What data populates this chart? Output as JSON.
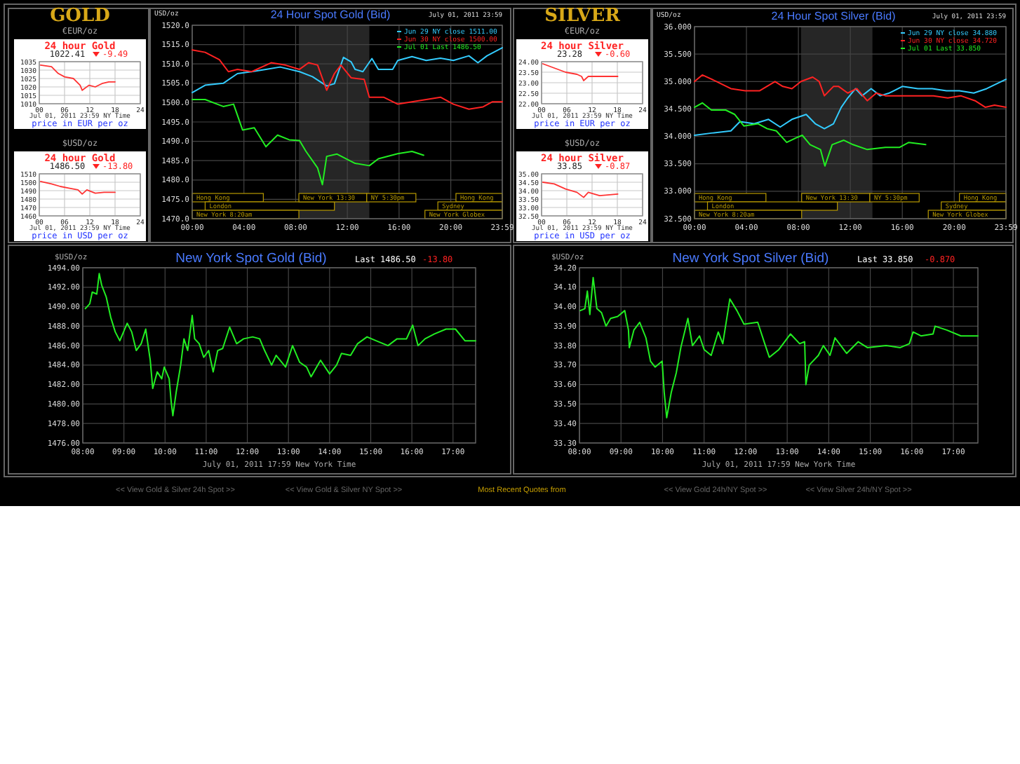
{
  "chart_data": [
    {
      "type": "line",
      "title": "GOLD",
      "ylabel": "€EUR/oz",
      "subtitle": "24 hour Gold",
      "annotations": [
        "1022.41",
        "-9.49",
        "Jul 01, 2011 23:59 NY Time",
        "price in EUR per oz"
      ],
      "xlim": [
        0,
        24
      ],
      "xticks": [
        {
          "value": 0,
          "label": "00"
        },
        {
          "value": 6,
          "label": "06"
        },
        12,
        18,
        24
      ],
      "ylim": [
        1010,
        1035
      ],
      "yticks": [
        1010,
        1015,
        1020,
        1025,
        1030,
        1035
      ],
      "grid": true,
      "series": [
        {
          "color": "#ff3333",
          "x": [
            0.3,
            2.9,
            4.5,
            6.0,
            8.1,
            9.7,
            10.2,
            11.8,
            13.3,
            14.9,
            16.5,
            18.0
          ],
          "values": [
            1033,
            1032,
            1028,
            1026,
            1025,
            1021,
            1018,
            1021,
            1020,
            1022,
            1023,
            1023
          ]
        }
      ]
    },
    {
      "type": "line",
      "ylabel": "$USD/oz",
      "subtitle": "24 hour Gold",
      "annotations": [
        "1486.50",
        "-13.80",
        "Jul 01, 2011 23:59 NY Time",
        "price in USD per oz"
      ],
      "xlim": [
        0,
        24
      ],
      "xticks": [
        {
          "value": 0,
          "label": "00"
        },
        {
          "value": 6,
          "label": "06"
        },
        12,
        18,
        24
      ],
      "ylim": [
        1460,
        1510
      ],
      "yticks": [
        1460,
        1470,
        1480,
        1490,
        1500,
        1510
      ],
      "grid": true,
      "series": [
        {
          "color": "#ff3333",
          "x": [
            0.3,
            2.9,
            5,
            7,
            9.2,
            10.2,
            11.3,
            13.3,
            15.4,
            18
          ],
          "values": [
            1501,
            1498,
            1495,
            1493,
            1491,
            1486,
            1491,
            1487,
            1488,
            1488
          ]
        }
      ]
    },
    {
      "type": "line",
      "title": "24 Hour Spot Gold (Bid)",
      "subtitle": "July 01, 2011 23:59",
      "ylabel": "USD/oz",
      "legend": "top right",
      "grid": true,
      "xlim": [
        0,
        23.983
      ],
      "xticks": [
        {
          "value": 0,
          "label": "00:00"
        },
        {
          "value": 4,
          "label": "04:00"
        },
        {
          "value": 8,
          "label": "08:00"
        },
        {
          "value": 12,
          "label": "12:00"
        },
        {
          "value": 16,
          "label": "16:00"
        },
        {
          "value": 20,
          "label": "20:00"
        },
        {
          "value": 23.983,
          "label": "23:59"
        }
      ],
      "ylim": [
        1470,
        1520
      ],
      "yticks": [
        {
          "value": 1470,
          "label": "1470.0"
        },
        {
          "value": 1475,
          "label": "1475.0"
        },
        {
          "value": 1480,
          "label": "1480.0"
        },
        {
          "value": 1485,
          "label": "1485.0"
        },
        {
          "value": 1490,
          "label": "1490.0"
        },
        {
          "value": 1495,
          "label": "1495.0"
        },
        {
          "value": 1500,
          "label": "1500.0"
        },
        {
          "value": 1505,
          "label": "1505.0"
        },
        {
          "value": 1510,
          "label": "1510.0"
        },
        {
          "value": 1515,
          "label": "1515.0"
        },
        {
          "value": 1520,
          "label": "1520.0"
        }
      ],
      "bands": [
        {
          "axis": "x",
          "from": 8.25,
          "to": 13.7,
          "color": "#262626"
        },
        {
          "axis": "x",
          "from": 0,
          "to": 5.5,
          "label": "Hong Kong",
          "color": "#b89a00"
        },
        {
          "axis": "x",
          "from": 1,
          "to": 11,
          "label": "London",
          "color": "#b89a00"
        },
        {
          "axis": "x",
          "from": 0,
          "to": 8.25,
          "label": "New York 8:20am",
          "color": "#b89a00"
        },
        {
          "axis": "x",
          "from": 8.25,
          "to": 13.5,
          "label": "New York 13:30",
          "color": "#b89a00"
        },
        {
          "axis": "x",
          "from": 13.5,
          "to": 17.3,
          "label": "NY 5:30pm",
          "color": "#b89a00"
        },
        {
          "axis": "x",
          "from": 20.4,
          "to": 23.983,
          "label": "Hong Kong",
          "color": "#b89a00"
        },
        {
          "axis": "x",
          "from": 19,
          "to": 23.983,
          "label": "Sydney",
          "color": "#b89a00"
        },
        {
          "axis": "x",
          "from": 18,
          "to": 23.983,
          "label": "New York Globex",
          "color": "#b89a00"
        }
      ],
      "series": [
        {
          "name": "Jun 29 NY close 1511.00",
          "color": "#33ccff",
          "x": [
            0,
            1,
            2.4,
            3.5,
            4.6,
            5.7,
            6.8,
            8.3,
            9.3,
            10.4,
            11,
            11.7,
            12.3,
            12.6,
            13.2,
            13.9,
            14.4,
            15.5,
            15.9,
            17,
            18.1,
            19.2,
            20.2,
            21.4,
            22.1,
            22.8,
            23.983
          ],
          "values": [
            1502.6,
            1504.5,
            1505,
            1507.5,
            1508,
            1508.6,
            1509.2,
            1508,
            1506.7,
            1504.3,
            1504.9,
            1511.7,
            1510.5,
            1508.6,
            1508,
            1511.4,
            1508.6,
            1508.6,
            1510.9,
            1511.9,
            1510.9,
            1511.5,
            1510.9,
            1512.1,
            1510.3,
            1512.1,
            1514.2
          ]
        },
        {
          "name": "Jun 30 NY close 1500.00",
          "color": "#ff2222",
          "x": [
            0,
            1,
            2.1,
            2.8,
            3.5,
            4.6,
            6.1,
            7.2,
            8.3,
            9,
            9.7,
            10.4,
            11,
            11.5,
            12.3,
            13.3,
            13.7,
            14.8,
            15.9,
            17,
            18.1,
            19.2,
            20.2,
            21.4,
            22.5,
            23.2,
            23.983
          ],
          "values": [
            1513.6,
            1513,
            1511.1,
            1508,
            1508.6,
            1508,
            1510.3,
            1509.7,
            1508.6,
            1510.3,
            1509.7,
            1503.2,
            1507.5,
            1509.7,
            1506.4,
            1506,
            1501.4,
            1501.4,
            1499.6,
            1500.2,
            1500.8,
            1501.4,
            1499.6,
            1498.3,
            1498.9,
            1500.2,
            1500.2
          ]
        },
        {
          "name": "Jul 01 Last 1486.50",
          "color": "#22ee22",
          "x": [
            0,
            1,
            2.4,
            3.2,
            3.9,
            4.8,
            5.7,
            6.6,
            7.5,
            8.3,
            8.8,
            9.7,
            10.07,
            10.4,
            11.2,
            12.6,
            13.7,
            14.4,
            15.9,
            17,
            17.9
          ],
          "values": [
            1500.8,
            1500.8,
            1499,
            1499.6,
            1492.9,
            1493.5,
            1488.6,
            1491.6,
            1490.4,
            1490.2,
            1487.4,
            1483.1,
            1478.8,
            1486.1,
            1486.7,
            1484.3,
            1483.7,
            1485.5,
            1486.8,
            1487.4,
            1486.4
          ]
        }
      ]
    },
    {
      "type": "line",
      "title": "SILVER",
      "ylabel": "€EUR/oz",
      "subtitle": "24 hour Silver",
      "annotations": [
        "23.28",
        "-0.60",
        "Jul 01, 2011 23:59 NY Time",
        "price in EUR per oz"
      ],
      "xlim": [
        0,
        24
      ],
      "xticks": [
        {
          "value": 0,
          "label": "00"
        },
        {
          "value": 6,
          "label": "06"
        },
        12,
        18,
        24
      ],
      "ylim": [
        22,
        24
      ],
      "yticks": [
        {
          "value": 22,
          "label": "22.00"
        },
        {
          "value": 22.5,
          "label": "22.50"
        },
        {
          "value": 23,
          "label": "23.00"
        },
        {
          "value": 23.5,
          "label": "23.50"
        },
        {
          "value": 24,
          "label": "24.00"
        }
      ],
      "grid": true,
      "series": [
        {
          "color": "#ff3333",
          "x": [
            0.3,
            3,
            5.7,
            8.4,
            9.5,
            10,
            11.1,
            13.8,
            18.1
          ],
          "values": [
            23.9,
            23.7,
            23.5,
            23.4,
            23.3,
            23.1,
            23.3,
            23.3,
            23.3
          ]
        }
      ]
    },
    {
      "type": "line",
      "ylabel": "$USD/oz",
      "subtitle": "24 hour Silver",
      "annotations": [
        "33.85",
        "-0.87",
        "Jul 01, 2011 23:59 NY Time",
        "price in USD per oz"
      ],
      "xlim": [
        0,
        24
      ],
      "xticks": [
        {
          "value": 0,
          "label": "00"
        },
        {
          "value": 6,
          "label": "06"
        },
        12,
        18,
        24
      ],
      "ylim": [
        32.5,
        35
      ],
      "yticks": [
        {
          "value": 32.5,
          "label": "32.50"
        },
        {
          "value": 33,
          "label": "33.00"
        },
        {
          "value": 33.5,
          "label": "33.50"
        },
        {
          "value": 34,
          "label": "34.00"
        },
        {
          "value": 34.5,
          "label": "34.50"
        },
        {
          "value": 35,
          "label": "35.00"
        }
      ],
      "grid": true,
      "series": [
        {
          "color": "#ff3333",
          "x": [
            0.3,
            3,
            5.7,
            8.4,
            10,
            11.1,
            13.8,
            18.1
          ],
          "values": [
            34.5,
            34.4,
            34.1,
            33.9,
            33.6,
            33.9,
            33.7,
            33.8
          ]
        }
      ]
    },
    {
      "type": "line",
      "title": "24 Hour Spot Silver (Bid)",
      "subtitle": "July 01, 2011 23:59",
      "ylabel": "USD/oz",
      "legend": "top right",
      "grid": true,
      "xlim": [
        0,
        23.983
      ],
      "xticks": [
        {
          "value": 0,
          "label": "00:00"
        },
        {
          "value": 4,
          "label": "04:00"
        },
        {
          "value": 8,
          "label": "08:00"
        },
        {
          "value": 12,
          "label": "12:00"
        },
        {
          "value": 16,
          "label": "16:00"
        },
        {
          "value": 20,
          "label": "20:00"
        },
        {
          "value": 23.983,
          "label": "23:59"
        }
      ],
      "ylim": [
        32.5,
        36
      ],
      "yticks": [
        {
          "value": 32.5,
          "label": "32.500"
        },
        {
          "value": 33,
          "label": "33.000"
        },
        {
          "value": 33.5,
          "label": "33.500"
        },
        {
          "value": 34,
          "label": "34.000"
        },
        {
          "value": 34.5,
          "label": "34.500"
        },
        {
          "value": 35,
          "label": "35.000"
        },
        {
          "value": 35.5,
          "label": "35.500"
        },
        {
          "value": 36,
          "label": "36.000"
        }
      ],
      "bands": [
        {
          "axis": "x",
          "from": 8.2,
          "to": 13.7,
          "color": "#262626"
        },
        {
          "axis": "x",
          "from": 0,
          "to": 5.5,
          "label": "Hong Kong",
          "color": "#b89a00"
        },
        {
          "axis": "x",
          "from": 1,
          "to": 11,
          "label": "London",
          "color": "#b89a00"
        },
        {
          "axis": "x",
          "from": 0,
          "to": 8.25,
          "label": "New York 8:20am",
          "color": "#b89a00"
        },
        {
          "axis": "x",
          "from": 8.25,
          "to": 13.5,
          "label": "New York 13:30",
          "color": "#b89a00"
        },
        {
          "axis": "x",
          "from": 13.5,
          "to": 17.3,
          "label": "NY 5:30pm",
          "color": "#b89a00"
        },
        {
          "axis": "x",
          "from": 20.4,
          "to": 23.983,
          "label": "Hong Kong",
          "color": "#b89a00"
        },
        {
          "axis": "x",
          "from": 19,
          "to": 23.983,
          "label": "Sydney",
          "color": "#b89a00"
        },
        {
          "axis": "x",
          "from": 18,
          "to": 23.983,
          "label": "New York Globex",
          "color": "#b89a00"
        }
      ],
      "series": [
        {
          "name": "Jun 29 NY close 34.880",
          "color": "#33ccff",
          "x": [
            0,
            1.3,
            2.8,
            3.5,
            4.6,
            5.7,
            6.6,
            7.5,
            8.6,
            9.3,
            10,
            10.7,
            11.3,
            11.8,
            12.4,
            12.9,
            13.6,
            14.3,
            15,
            16,
            17.2,
            18.3,
            19.4,
            20.4,
            21.5,
            22.5,
            23.983
          ],
          "values": [
            34.02,
            34.06,
            34.1,
            34.27,
            34.23,
            34.31,
            34.17,
            34.31,
            34.4,
            34.23,
            34.14,
            34.23,
            34.53,
            34.7,
            34.87,
            34.74,
            34.87,
            34.74,
            34.79,
            34.91,
            34.87,
            34.87,
            34.83,
            34.83,
            34.79,
            34.87,
            35.04
          ]
        },
        {
          "name": "Jun 30 NY close 34.720",
          "color": "#ff2222",
          "x": [
            0,
            0.6,
            1.7,
            2.8,
            3.9,
            5,
            6.2,
            6.8,
            7.5,
            8.2,
            9.1,
            9.6,
            10,
            10.7,
            11.1,
            11.8,
            12.5,
            13.3,
            14,
            14.7,
            15.8,
            17.3,
            18.4,
            19.5,
            20.5,
            21.6,
            22.4,
            23.1,
            23.983
          ],
          "values": [
            35,
            35.12,
            35,
            34.87,
            34.83,
            34.83,
            35,
            34.91,
            34.87,
            35,
            35.08,
            35,
            34.74,
            34.91,
            34.91,
            34.79,
            34.87,
            34.65,
            34.79,
            34.74,
            34.74,
            34.74,
            34.74,
            34.7,
            34.74,
            34.65,
            34.53,
            34.57,
            34.53
          ]
        },
        {
          "name": "Jul 01 Last 33.850",
          "color": "#22ee22",
          "x": [
            0,
            0.6,
            1.3,
            2.4,
            3.1,
            3.8,
            4.9,
            5.6,
            6.3,
            7.1,
            7.8,
            8.3,
            8.9,
            9.7,
            10.04,
            10.6,
            11.5,
            12.2,
            13.3,
            14.7,
            15.8,
            16.5,
            17.8
          ],
          "values": [
            34.53,
            34.61,
            34.48,
            34.48,
            34.4,
            34.19,
            34.23,
            34.14,
            34.1,
            33.89,
            33.97,
            34.02,
            33.85,
            33.76,
            33.46,
            33.85,
            33.93,
            33.85,
            33.76,
            33.8,
            33.8,
            33.89,
            33.85
          ]
        }
      ]
    },
    {
      "type": "line",
      "title": "New York Spot Gold (Bid)",
      "ylabel": "$USD/oz",
      "xlabel": "July 01, 2011 17:59 New York Time",
      "annotations": [
        "Last 1486.50",
        "-13.80"
      ],
      "grid": true,
      "xlim": [
        8,
        17.55
      ],
      "xticks": [
        {
          "value": 8,
          "label": "08:00"
        },
        {
          "value": 9,
          "label": "09:00"
        },
        {
          "value": 10,
          "label": "10:00"
        },
        {
          "value": 11,
          "label": "11:00"
        },
        {
          "value": 12,
          "label": "12:00"
        },
        {
          "value": 13,
          "label": "13:00"
        },
        {
          "value": 14,
          "label": "14:00"
        },
        {
          "value": 15,
          "label": "15:00"
        },
        {
          "value": 16,
          "label": "16:00"
        },
        {
          "value": 17,
          "label": "17:00"
        }
      ],
      "ylim": [
        1476,
        1494
      ],
      "yticks": [
        {
          "value": 1476,
          "label": "1476.00"
        },
        {
          "value": 1478,
          "label": "1478.00"
        },
        {
          "value": 1480,
          "label": "1480.00"
        },
        {
          "value": 1482,
          "label": "1482.00"
        },
        {
          "value": 1484,
          "label": "1484.00"
        },
        {
          "value": 1486,
          "label": "1486.00"
        },
        {
          "value": 1488,
          "label": "1488.00"
        },
        {
          "value": 1490,
          "label": "1490.00"
        },
        {
          "value": 1492,
          "label": "1492.00"
        },
        {
          "value": 1494,
          "label": "1494.00"
        }
      ],
      "series": [
        {
          "color": "#22ee22",
          "x": [
            8.06,
            8.17,
            8.23,
            8.34,
            8.4,
            8.46,
            8.57,
            8.68,
            8.79,
            8.9,
            9.08,
            9.19,
            9.3,
            9.42,
            9.53,
            9.64,
            9.7,
            9.81,
            9.92,
            9.98,
            10.1,
            10.15,
            10.19,
            10.27,
            10.38,
            10.46,
            10.55,
            10.66,
            10.72,
            10.83,
            10.94,
            11.06,
            11.17,
            11.28,
            11.4,
            11.57,
            11.74,
            11.91,
            12.13,
            12.3,
            12.42,
            12.59,
            12.7,
            12.93,
            13.1,
            13.27,
            13.44,
            13.55,
            13.78,
            14.0,
            14.17,
            14.29,
            14.51,
            14.68,
            14.91,
            15.13,
            15.42,
            15.64,
            15.87,
            16.02,
            16.15,
            16.32,
            16.55,
            16.83,
            17.06,
            17.29,
            17.55
          ],
          "values": [
            1489.8,
            1490.3,
            1491.5,
            1491.3,
            1493.4,
            1492.2,
            1491,
            1488.9,
            1487.4,
            1486.5,
            1488.3,
            1487.4,
            1485.5,
            1486.2,
            1487.7,
            1484.5,
            1481.6,
            1483.3,
            1482.6,
            1483.8,
            1482.6,
            1480.2,
            1478.8,
            1481.2,
            1484,
            1486.7,
            1485.5,
            1489.1,
            1486.7,
            1486.2,
            1484.8,
            1485.5,
            1483.3,
            1485.5,
            1485.7,
            1487.9,
            1486.2,
            1486.7,
            1486.9,
            1486.7,
            1485.5,
            1484,
            1485,
            1483.8,
            1486,
            1484.3,
            1483.8,
            1482.8,
            1484.5,
            1483.1,
            1484,
            1485.2,
            1485,
            1486.2,
            1486.9,
            1486.5,
            1486,
            1486.7,
            1486.7,
            1488.1,
            1486,
            1486.7,
            1487.2,
            1487.7,
            1487.7,
            1486.5,
            1486.5
          ]
        }
      ]
    },
    {
      "type": "line",
      "title": "New York Spot Silver (Bid)",
      "ylabel": "$USD/oz",
      "xlabel": "July 01, 2011 17:59 New York Time",
      "annotations": [
        "Last 33.850",
        "-0.870"
      ],
      "grid": true,
      "xlim": [
        8,
        17.59
      ],
      "xticks": [
        {
          "value": 8,
          "label": "08:00"
        },
        {
          "value": 9,
          "label": "09:00"
        },
        {
          "value": 10,
          "label": "10:00"
        },
        {
          "value": 11,
          "label": "11:00"
        },
        {
          "value": 12,
          "label": "12:00"
        },
        {
          "value": 13,
          "label": "13:00"
        },
        {
          "value": 14,
          "label": "14:00"
        },
        {
          "value": 15,
          "label": "15:00"
        },
        {
          "value": 16,
          "label": "16:00"
        },
        {
          "value": 17,
          "label": "17:00"
        }
      ],
      "ylim": [
        33.3,
        34.2
      ],
      "yticks": [
        {
          "value": 33.3,
          "label": "33.30"
        },
        {
          "value": 33.4,
          "label": "33.40"
        },
        {
          "value": 33.5,
          "label": "33.50"
        },
        {
          "value": 33.6,
          "label": "33.60"
        },
        {
          "value": 33.7,
          "label": "33.70"
        },
        {
          "value": 33.8,
          "label": "33.80"
        },
        {
          "value": 33.9,
          "label": "33.90"
        },
        {
          "value": 34,
          "label": "34.00"
        },
        {
          "value": 34.1,
          "label": "34.10"
        },
        {
          "value": 34.2,
          "label": "34.20"
        }
      ],
      "series": [
        {
          "color": "#22ee22",
          "x": [
            8.02,
            8.13,
            8.19,
            8.25,
            8.33,
            8.42,
            8.53,
            8.64,
            8.75,
            8.92,
            9.09,
            9.18,
            9.2,
            9.31,
            9.45,
            9.6,
            9.71,
            9.82,
            9.99,
            10.04,
            10.1,
            10.21,
            10.33,
            10.44,
            10.61,
            10.72,
            10.89,
            11.0,
            11.17,
            11.34,
            11.45,
            11.62,
            11.79,
            11.96,
            12.29,
            12.46,
            12.57,
            12.8,
            13.08,
            13.3,
            13.42,
            13.45,
            13.53,
            13.75,
            13.87,
            14.03,
            14.15,
            14.43,
            14.71,
            14.93,
            15.38,
            15.72,
            15.94,
            16.03,
            16.22,
            16.51,
            16.56,
            16.84,
            17.18,
            17.59
          ],
          "values": [
            33.98,
            33.99,
            34.08,
            33.96,
            34.15,
            33.99,
            33.97,
            33.9,
            33.94,
            33.95,
            33.98,
            33.88,
            33.79,
            33.88,
            33.92,
            33.84,
            33.72,
            33.69,
            33.72,
            33.56,
            33.43,
            33.56,
            33.66,
            33.79,
            33.94,
            33.8,
            33.85,
            33.78,
            33.75,
            33.87,
            33.81,
            34.04,
            33.98,
            33.91,
            33.92,
            33.81,
            33.74,
            33.78,
            33.86,
            33.81,
            33.82,
            33.6,
            33.7,
            33.75,
            33.8,
            33.75,
            33.84,
            33.76,
            33.82,
            33.79,
            33.8,
            33.79,
            33.81,
            33.87,
            33.85,
            33.86,
            33.9,
            33.88,
            33.85,
            33.85
          ]
        }
      ]
    },
    {
      "type": "other",
      "annotations": [
        "<< View Gold & Silver 24h Spot >>",
        "<< View Gold & Silver NY Spot >>",
        "Most Recent Quotes from",
        "<< View Gold 24h/NY Spot >>",
        "<< View Silver 24h/NY Spot >>"
      ]
    }
  ]
}
